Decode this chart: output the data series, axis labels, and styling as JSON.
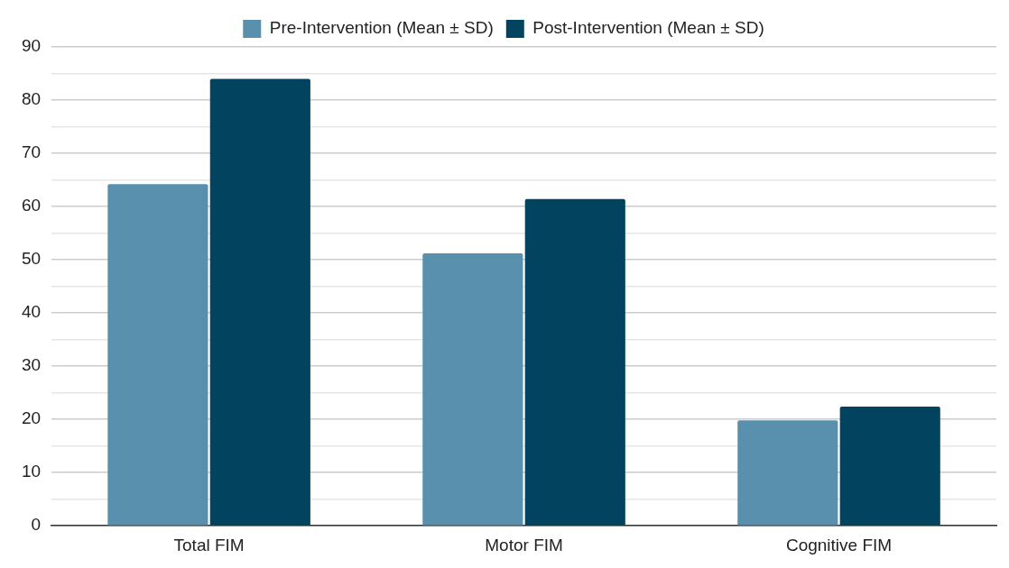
{
  "chart_data": {
    "type": "bar",
    "categories": [
      "Total FIM",
      "Motor FIM",
      "Cognitive FIM"
    ],
    "series": [
      {
        "name": "Pre-Intervention (Mean ± SD)",
        "color": "#5890ae",
        "values": [
          64.2,
          51.2,
          19.8
        ]
      },
      {
        "name": "Post-Intervention (Mean ± SD)",
        "color": "#02445f",
        "values": [
          84.0,
          61.4,
          22.4
        ]
      }
    ],
    "ylim": [
      0,
      90
    ],
    "yticks": [
      0,
      {
        "value": 5,
        "label": null
      },
      10,
      {
        "value": 15,
        "label": null
      },
      20,
      {
        "value": 25,
        "label": null
      },
      30,
      {
        "value": 35,
        "label": null
      },
      40,
      {
        "value": 45,
        "label": null
      },
      50,
      {
        "value": 55,
        "label": null
      },
      60,
      {
        "value": 65,
        "label": null
      },
      70,
      {
        "value": 75,
        "label": null
      },
      80,
      {
        "value": 85,
        "label": null
      },
      90
    ],
    "grid": "y",
    "legend": "top"
  }
}
